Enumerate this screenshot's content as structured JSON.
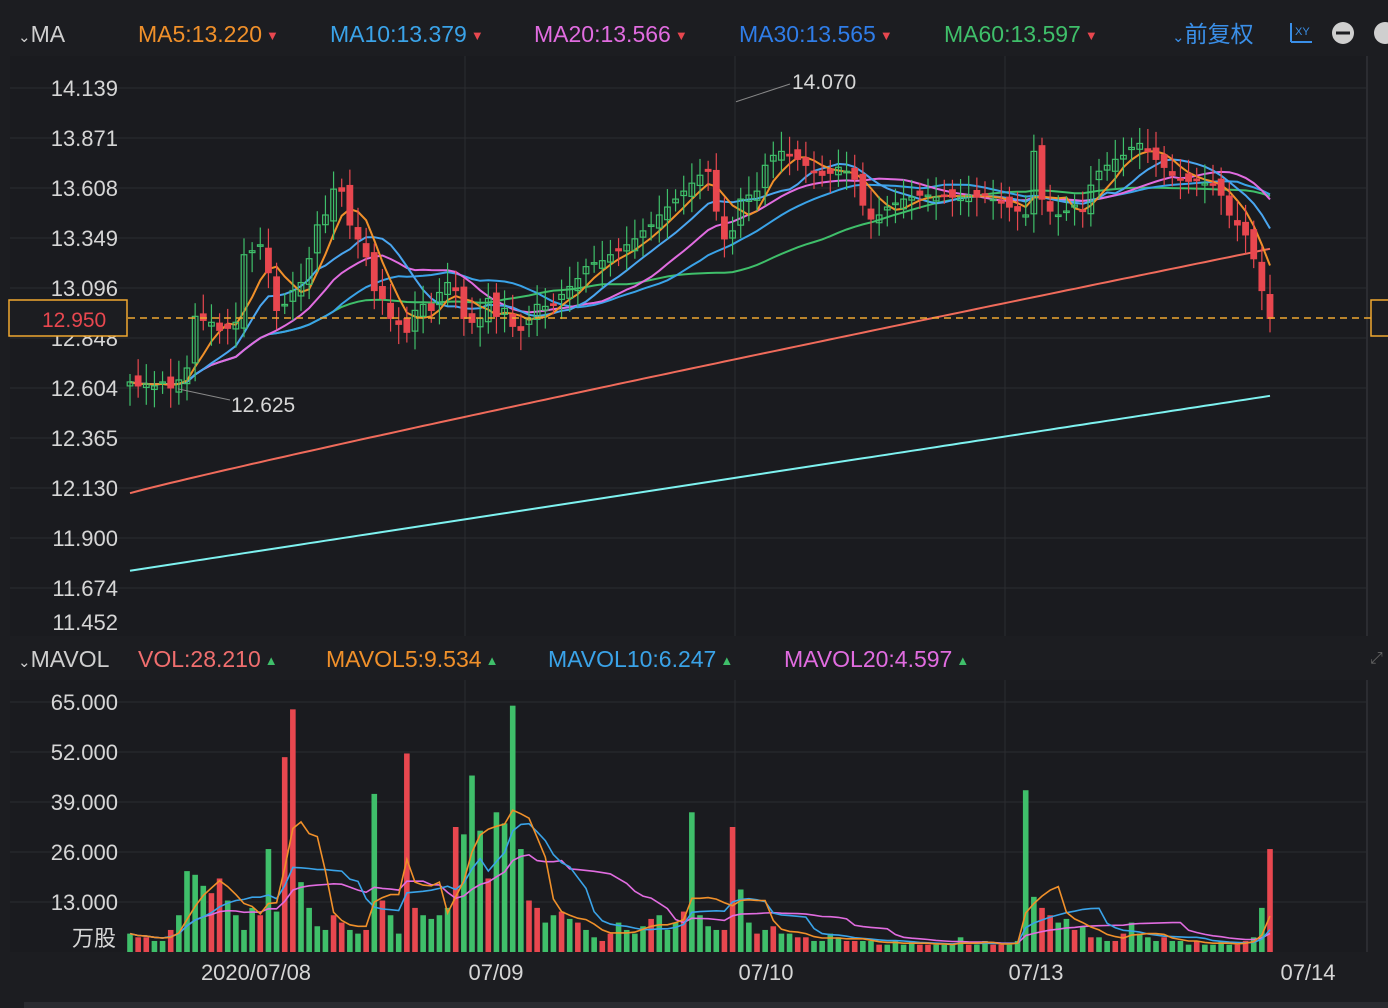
{
  "header": {
    "ma_label": "MA",
    "ma_items": [
      {
        "text": "MA5:13.220",
        "color": "#f0902a",
        "trend": "down"
      },
      {
        "text": "MA10:13.379",
        "color": "#3aa3e8",
        "trend": "down"
      },
      {
        "text": "MA20:13.566",
        "color": "#e16ce0",
        "trend": "down"
      },
      {
        "text": "MA30:13.565",
        "color": "#2f7de8",
        "trend": "down"
      },
      {
        "text": "MA60:13.597",
        "color": "#3fbf6a",
        "trend": "down"
      }
    ],
    "adjust_label": "前复权",
    "xy_label": "XY"
  },
  "volume_header": {
    "label": "MAVOL",
    "items": [
      {
        "text": "VOL:28.210",
        "color": "#f06e6e",
        "trend": "up"
      },
      {
        "text": "MAVOL5:9.534",
        "color": "#f0902a",
        "trend": "up"
      },
      {
        "text": "MAVOL10:6.247",
        "color": "#3aa3e8",
        "trend": "up"
      },
      {
        "text": "MAVOL20:4.597",
        "color": "#e16ce0",
        "trend": "up"
      }
    ]
  },
  "chart_data": [
    {
      "type": "candlestick",
      "y_ticks": [
        "14.139",
        "13.871",
        "13.608",
        "13.349",
        "13.096",
        "12.848",
        "12.604",
        "12.365",
        "12.130",
        "11.900",
        "11.674",
        "11.452"
      ],
      "ylim": [
        11.452,
        14.139
      ],
      "current_price": "12.950",
      "annotations": {
        "high": "14.070",
        "low": "12.625"
      },
      "x_ticks": [
        "2020/07/08",
        "07/09",
        "07/10",
        "07/13",
        "07/14"
      ],
      "colors": {
        "up": "#3fbf6a",
        "down": "#e8474f",
        "ma5": "#f0902a",
        "ma10": "#3aa3e8",
        "ma20": "#e16ce0",
        "ma30": "#2f7de8",
        "ma60": "#3fbf6a",
        "ma120": "#f06b5b",
        "ma250": "#7ef2f0"
      },
      "approx_closes": [
        12.66,
        12.64,
        12.65,
        12.64,
        12.66,
        12.63,
        12.67,
        12.73,
        12.99,
        12.97,
        12.96,
        12.92,
        12.93,
        12.96,
        13.3,
        13.32,
        13.35,
        13.21,
        13.02,
        13.05,
        13.12,
        13.16,
        13.28,
        13.45,
        13.5,
        13.63,
        13.62,
        13.45,
        13.38,
        13.29,
        13.12,
        13.08,
        12.98,
        12.95,
        12.91,
        13.02,
        13.05,
        13.02,
        13.11,
        13.16,
        13.12,
        12.98,
        12.96,
        12.98,
        13.08,
        12.99,
        13.03,
        12.94,
        12.92,
        12.98,
        13.05,
        13.04,
        13.05,
        13.1,
        13.14,
        13.18,
        13.24,
        13.26,
        13.27,
        13.3,
        13.32,
        13.35,
        13.38,
        13.42,
        13.45,
        13.5,
        13.54,
        13.58,
        13.62,
        13.66,
        13.7,
        13.72,
        13.52,
        13.38,
        13.42,
        13.58,
        13.6,
        13.62,
        13.75,
        13.8,
        13.82,
        13.8,
        13.78,
        13.75,
        13.72,
        13.7,
        13.71,
        13.74,
        13.72,
        13.68,
        13.55,
        13.48,
        13.5,
        13.54,
        13.56,
        13.58,
        13.59,
        13.6,
        13.6,
        13.59,
        13.6,
        13.59,
        13.59,
        13.6,
        13.59,
        13.6,
        13.58,
        13.56,
        13.54,
        13.52,
        13.5,
        13.82,
        13.58,
        13.52,
        13.5,
        13.52,
        13.55,
        13.52,
        13.65,
        13.72,
        13.75,
        13.78,
        13.8,
        13.84,
        13.86,
        13.82,
        13.78,
        13.74,
        13.7,
        13.68,
        13.67,
        13.68,
        13.66,
        13.65,
        13.6,
        13.5,
        13.45,
        13.4,
        13.28,
        13.12,
        12.98
      ]
    },
    {
      "type": "bar",
      "y_ticks": [
        "65.000",
        "52.000",
        "39.000",
        "26.000",
        "13.000"
      ],
      "unit_label": "万股",
      "ylim": [
        0,
        70
      ],
      "approx_volumes": [
        5,
        4,
        4,
        3,
        3,
        6,
        10,
        22,
        21,
        18,
        16,
        20,
        14,
        10,
        6,
        12,
        10,
        28,
        11,
        53,
        66,
        19,
        12,
        7,
        6,
        10,
        8,
        6,
        5,
        6,
        43,
        14,
        10,
        5,
        54,
        12,
        10,
        9,
        10,
        12,
        34,
        32,
        48,
        33,
        20,
        38,
        35,
        67,
        28,
        14,
        12,
        8,
        10,
        11,
        9,
        8,
        6,
        4,
        3,
        5,
        8,
        6,
        5,
        7,
        9,
        10,
        6,
        8,
        11,
        38,
        10,
        7,
        6,
        6,
        34,
        17,
        8,
        5,
        6,
        7,
        5,
        5,
        4,
        4,
        3,
        3,
        5,
        4,
        3,
        3,
        3,
        3,
        2,
        2,
        3,
        2,
        3,
        2,
        2,
        2,
        2,
        2,
        4,
        2,
        2,
        3,
        2,
        2,
        2,
        3,
        44,
        15,
        12,
        10,
        8,
        9,
        6,
        7,
        4,
        4,
        3,
        3,
        5,
        8,
        5,
        4,
        3,
        4,
        3,
        3,
        2,
        3,
        2,
        2,
        3,
        2,
        2,
        3,
        4,
        12,
        28
      ]
    }
  ]
}
